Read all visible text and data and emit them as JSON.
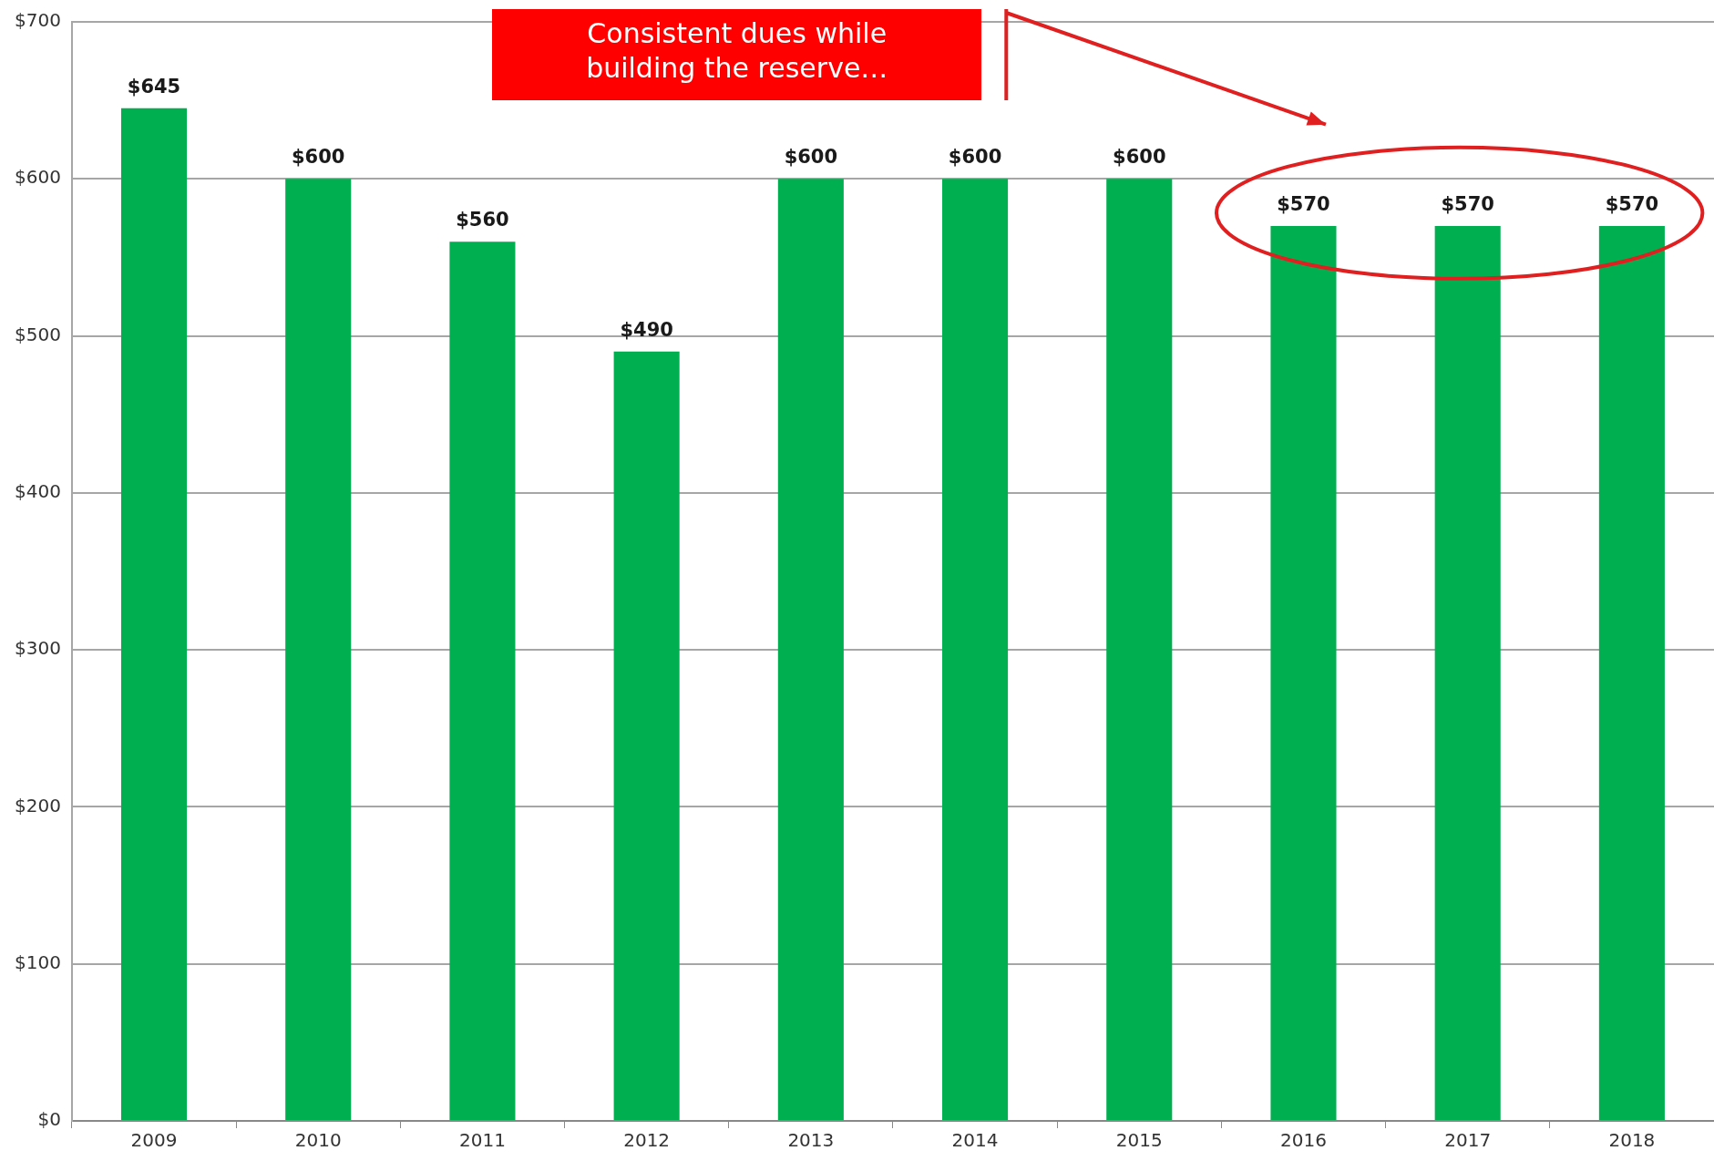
{
  "chart_data": {
    "type": "bar",
    "categories": [
      "2009",
      "2010",
      "2011",
      "2012",
      "2013",
      "2014",
      "2015",
      "2016",
      "2017",
      "2018"
    ],
    "values": [
      645,
      600,
      560,
      490,
      600,
      600,
      600,
      570,
      570,
      570
    ],
    "value_labels": [
      "$645",
      "$600",
      "$560",
      "$490",
      "$600",
      "$600",
      "$600",
      "$570",
      "$570",
      "$570"
    ],
    "color": "#00b050",
    "ylim": [
      0,
      700
    ],
    "yticks": [
      {
        "value": 0,
        "label": "$0"
      },
      {
        "value": 100,
        "label": "$100"
      },
      {
        "value": 200,
        "label": "$200"
      },
      {
        "value": 300,
        "label": "$300"
      },
      {
        "value": 400,
        "label": "$400"
      },
      {
        "value": 500,
        "label": "$500"
      },
      {
        "value": 600,
        "label": "$600"
      },
      {
        "value": 700,
        "label": "$700"
      }
    ],
    "grid": "y",
    "legend": false,
    "annotations": [
      "Consistent dues while building the reserve…"
    ]
  }
}
